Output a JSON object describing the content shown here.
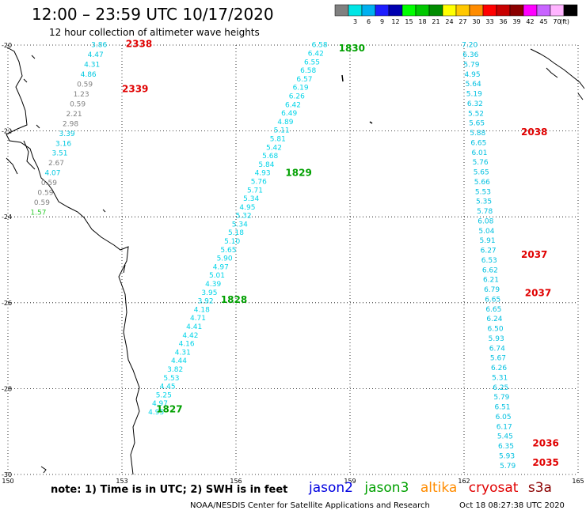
{
  "header": {
    "title": "12:00 – 23:59 UTC 10/17/2020",
    "subtitle": "12 hour collection of altimeter wave heights"
  },
  "color_scale": {
    "unit": "(ft)",
    "bins": [
      {
        "color": "#808080",
        "label": ""
      },
      {
        "color": "#00e5e5",
        "label": "3"
      },
      {
        "color": "#00b0f0",
        "label": "6"
      },
      {
        "color": "#1e1eff",
        "label": "9"
      },
      {
        "color": "#0000b0",
        "label": "12"
      },
      {
        "color": "#00ff00",
        "label": "15"
      },
      {
        "color": "#00c800",
        "label": "18"
      },
      {
        "color": "#008c00",
        "label": "21"
      },
      {
        "color": "#ffff00",
        "label": "24"
      },
      {
        "color": "#ffc800",
        "label": "27"
      },
      {
        "color": "#ff8c00",
        "label": "30"
      },
      {
        "color": "#ff0000",
        "label": "33"
      },
      {
        "color": "#c80000",
        "label": "36"
      },
      {
        "color": "#8b0000",
        "label": "39"
      },
      {
        "color": "#ff00ff",
        "label": "42"
      },
      {
        "color": "#c864ff",
        "label": "45"
      },
      {
        "color": "#ffb4ff",
        "label": "70"
      },
      {
        "color": "#000000",
        "label": ""
      }
    ]
  },
  "map": {
    "lon_range": [
      150,
      165
    ],
    "lat_range": [
      -30,
      -20
    ],
    "lon_ticks": [
      "150",
      "153",
      "156",
      "159",
      "162",
      "165"
    ],
    "lat_ticks": [
      "-20",
      "-22",
      "-24",
      "-26",
      "-28",
      "-30"
    ],
    "grid": "dotted"
  },
  "tracks": [
    {
      "satellite": "jason3",
      "color": "#00a000",
      "time_labels": [
        {
          "text": "1827",
          "lon": 153.9,
          "lat": -28.55
        },
        {
          "text": "1828",
          "lon": 155.6,
          "lat": -26.0
        },
        {
          "text": "1829",
          "lon": 157.3,
          "lat": -23.05
        },
        {
          "text": "1830",
          "lon": 158.7,
          "lat": -20.15
        }
      ],
      "values": [
        "4.95",
        "4.97",
        "5.25",
        "4.45",
        "5.53",
        "3.82",
        "4.44",
        "4.31",
        "4.16",
        "4.42",
        "4.41",
        "4.71",
        "4.18",
        "3.92",
        "3.95",
        "4.39",
        "5.01",
        "4.97",
        "5.90",
        "5.65",
        "5.10",
        "5.18",
        "5.34",
        "5.32",
        "4.95",
        "5.34",
        "5.71",
        "5.76",
        "4.93",
        "5.84",
        "5.68",
        "5.42",
        "5.81",
        "5.11",
        "4.89",
        "6.49",
        "6.42",
        "6.26",
        "6.19",
        "6.57",
        "6.58",
        "6.55",
        "6.42",
        "6.58"
      ]
    },
    {
      "satellite": "cryosat",
      "color": "#e00000",
      "time_labels": [
        {
          "text": "2035",
          "lon": 163.8,
          "lat": -29.8
        },
        {
          "text": "2036",
          "lon": 163.8,
          "lat": -29.35
        },
        {
          "text": "2037",
          "lon": 163.6,
          "lat": -25.85
        },
        {
          "text": "2037",
          "lon": 163.5,
          "lat": -24.95
        },
        {
          "text": "2038",
          "lon": 163.5,
          "lat": -22.1
        }
      ],
      "values": [
        "5.79",
        "5.93",
        "6.35",
        "5.45",
        "6.17",
        "6.05",
        "6.51",
        "5.79",
        "6.25",
        "5.31",
        "6.26",
        "5.67",
        "6.74",
        "5.93",
        "6.50",
        "6.24",
        "6.65",
        "6.65",
        "6.79",
        "6.21",
        "6.62",
        "6.53",
        "6.27",
        "5.91",
        "5.04",
        "6.08",
        "5.78",
        "5.35",
        "5.53",
        "5.66",
        "5.65",
        "5.76",
        "6.01",
        "6.65",
        "5.88",
        "5.65",
        "5.52",
        "6.32",
        "5.19",
        "5.64",
        "4.95",
        "5.79",
        "6.36",
        "7.20"
      ]
    },
    {
      "satellite": "cryosat",
      "color": "#e00000",
      "time_labels": [
        {
          "text": "2338",
          "lon": 153.1,
          "lat": -20.05
        },
        {
          "text": "2339",
          "lon": 153.0,
          "lat": -21.1
        }
      ],
      "values": [
        {
          "text": "1.57",
          "color": "#33cc33"
        },
        {
          "text": "0.59",
          "color": "#808080"
        },
        {
          "text": "0.59",
          "color": "#808080"
        },
        {
          "text": "0.59",
          "color": "#808080"
        },
        {
          "text": "4.07",
          "color": "#00c8e0"
        },
        {
          "text": "2.67",
          "color": "#808080"
        },
        {
          "text": "3.51",
          "color": "#00c8e0"
        },
        {
          "text": "3.16",
          "color": "#00c8e0"
        },
        {
          "text": "3.39",
          "color": "#00c8e0"
        },
        {
          "text": "2.98",
          "color": "#808080"
        },
        {
          "text": "2.21",
          "color": "#808080"
        },
        {
          "text": "0.59",
          "color": "#808080"
        },
        {
          "text": "1.23",
          "color": "#808080"
        },
        {
          "text": "0.59",
          "color": "#808080"
        },
        {
          "text": "4.86",
          "color": "#00c8e0"
        },
        {
          "text": "4.31",
          "color": "#00c8e0"
        },
        {
          "text": "4.47",
          "color": "#00c8e0"
        },
        {
          "text": "3.86",
          "color": "#00c8e0"
        }
      ]
    }
  ],
  "footer": {
    "note": "note: 1) Time is in UTC; 2) SWH is in feet",
    "legend": [
      {
        "label": "jason2",
        "color": "#0000e0"
      },
      {
        "label": "jason3",
        "color": "#00a000"
      },
      {
        "label": "altika",
        "color": "#ff8c00"
      },
      {
        "label": "cryosat",
        "color": "#e00000"
      },
      {
        "label": "s3a",
        "color": "#8b0000"
      }
    ],
    "credit": "NOAA/NESDIS Center for Satellite Applications and Research",
    "timestamp": "Oct 18 08:27:38 UTC 2020"
  }
}
